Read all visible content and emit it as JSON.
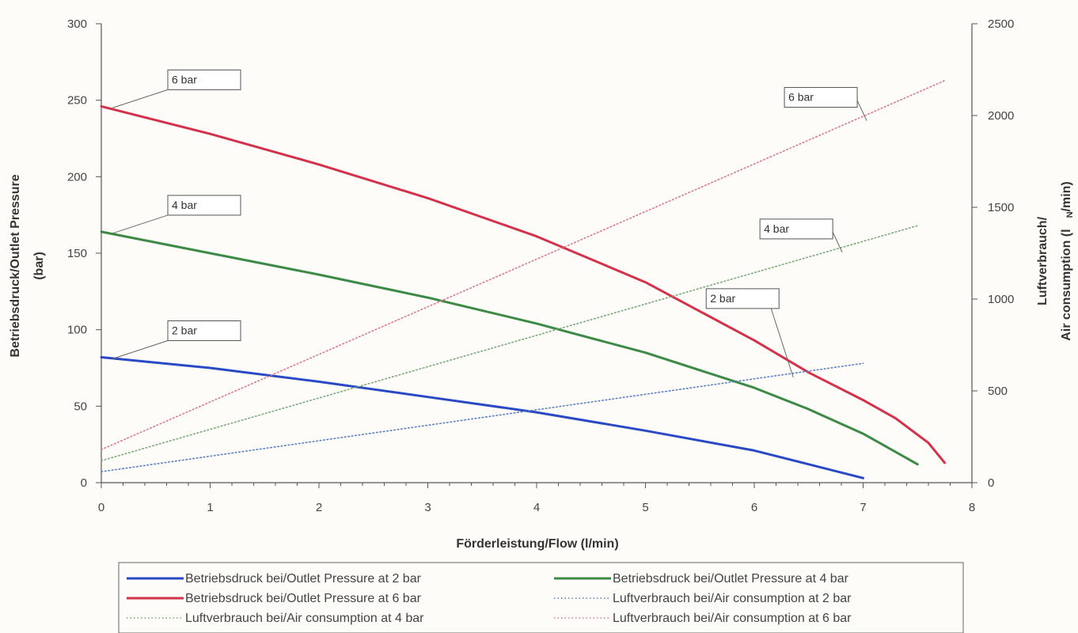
{
  "chart_data": {
    "type": "line",
    "title": "",
    "xlabel": "Förderleistung/Flow (l/min)",
    "ylabel_left_line1": "Betriebsdruck/Outlet Pressure",
    "ylabel_left_line2": "(bar)",
    "ylabel_right_line1": "Luftverbrauch/",
    "ylabel_right_line2": "Air consumption (l",
    "ylabel_right_sub": "N",
    "ylabel_right_end": "/min)",
    "xlim": [
      0,
      8
    ],
    "ylim_left": [
      0,
      300
    ],
    "ylim_right": [
      0,
      2500
    ],
    "x_ticks": [
      "0",
      "1",
      "2",
      "3",
      "4",
      "5",
      "6",
      "7",
      "8"
    ],
    "y_left_ticks": [
      "0",
      "50",
      "100",
      "150",
      "200",
      "250",
      "300"
    ],
    "y_right_ticks": [
      "0",
      "500",
      "1000",
      "1500",
      "2000",
      "2500"
    ],
    "grid": false,
    "legend_position": "bottom",
    "series": [
      {
        "name": "Betriebsdruck bei/Outlet Pressure at 2 bar",
        "axis": "left",
        "style": "solid",
        "color": "#2a49c4",
        "x": [
          0,
          1,
          2,
          3,
          4,
          5,
          6,
          6.5,
          7
        ],
        "y": [
          82,
          75,
          66,
          56,
          46,
          34,
          21,
          12,
          3
        ]
      },
      {
        "name": "Betriebsdruck bei/Outlet Pressure at 4 bar",
        "axis": "left",
        "style": "solid",
        "color": "#3d8a46",
        "x": [
          0,
          1,
          2,
          3,
          4,
          5,
          6,
          6.5,
          7,
          7.5
        ],
        "y": [
          164,
          150,
          136,
          121,
          104,
          85,
          62,
          48,
          32,
          12
        ]
      },
      {
        "name": "Betriebsdruck bei/Outlet Pressure at 6 bar",
        "axis": "left",
        "style": "solid",
        "color": "#d4324a",
        "x": [
          0,
          1,
          2,
          3,
          4,
          5,
          6,
          6.5,
          7,
          7.3,
          7.6,
          7.75
        ],
        "y": [
          246,
          228,
          208,
          186,
          161,
          131,
          93,
          72,
          54,
          42,
          26,
          13
        ]
      },
      {
        "name": "Luftverbrauch bei/Air consumption at 2 bar",
        "axis": "right",
        "style": "dotted",
        "color": "#5a7fc4",
        "x": [
          0,
          7
        ],
        "y": [
          60,
          650
        ]
      },
      {
        "name": "Luftverbrauch bei/Air consumption at 4 bar",
        "axis": "right",
        "style": "dotted",
        "color": "#7aa87a",
        "x": [
          0,
          7.5
        ],
        "y": [
          120,
          1400
        ]
      },
      {
        "name": "Luftverbrauch bei/Air consumption at 6 bar",
        "axis": "right",
        "style": "dotted",
        "color": "#d87a8a",
        "x": [
          0,
          7.75
        ],
        "y": [
          180,
          2190
        ]
      }
    ],
    "callouts": [
      {
        "text": "6 bar",
        "side": "left",
        "target_series": 2
      },
      {
        "text": "4 bar",
        "side": "left",
        "target_series": 1
      },
      {
        "text": "2 bar",
        "side": "left",
        "target_series": 0
      },
      {
        "text": "6 bar",
        "side": "right",
        "target_series": 5
      },
      {
        "text": "4 bar",
        "side": "right",
        "target_series": 4
      },
      {
        "text": "2 bar",
        "side": "right",
        "target_series": 3
      }
    ]
  }
}
